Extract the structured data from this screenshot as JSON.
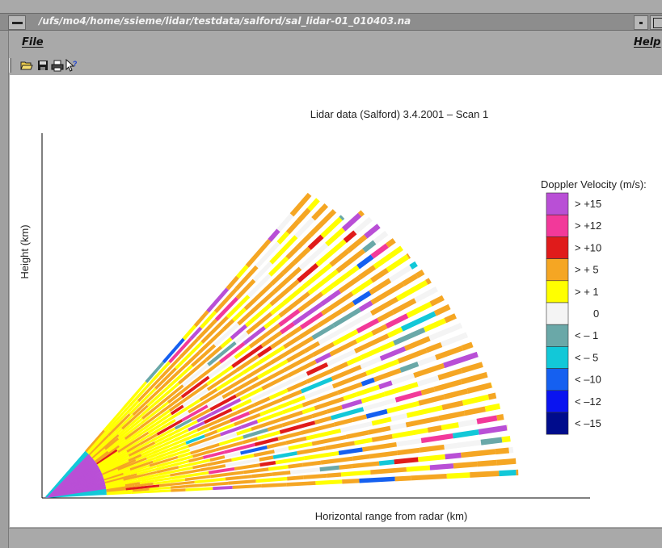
{
  "window": {
    "title": "/ufs/mo4/home/ssieme/lidar/testdata/salford/sal_lidar-01_010403.na"
  },
  "menubar": {
    "file_label": "File",
    "help_label": "Help"
  },
  "toolbar": {
    "icons": [
      "open-folder-icon",
      "save-icon",
      "print-icon",
      "context-help-icon"
    ]
  },
  "plot": {
    "title": "Lidar data (Salford) 3.4.2001 – Scan 1",
    "xlabel": "Horizontal range from radar (km)",
    "ylabel": "Height (km)"
  },
  "legend": {
    "title": "Doppler Velocity (m/s):",
    "items": [
      {
        "label": "> +15",
        "color": "#b94fd6"
      },
      {
        "label": "> +12",
        "color": "#f2399a"
      },
      {
        "label": "> +10",
        "color": "#e01b1b"
      },
      {
        "label": "> + 5",
        "color": "#f5a623"
      },
      {
        "label": "> + 1",
        "color": "#ffff00"
      },
      {
        "label": "0",
        "color": "#f4f4f4"
      },
      {
        "label": "< – 1",
        "color": "#6aa8a8"
      },
      {
        "label": "< – 5",
        "color": "#12c8d8"
      },
      {
        "label": "< –10",
        "color": "#1560f0"
      },
      {
        "label": "< –12",
        "color": "#0a14f0"
      },
      {
        "label": "< –15",
        "color": "#000c8c"
      }
    ]
  }
}
